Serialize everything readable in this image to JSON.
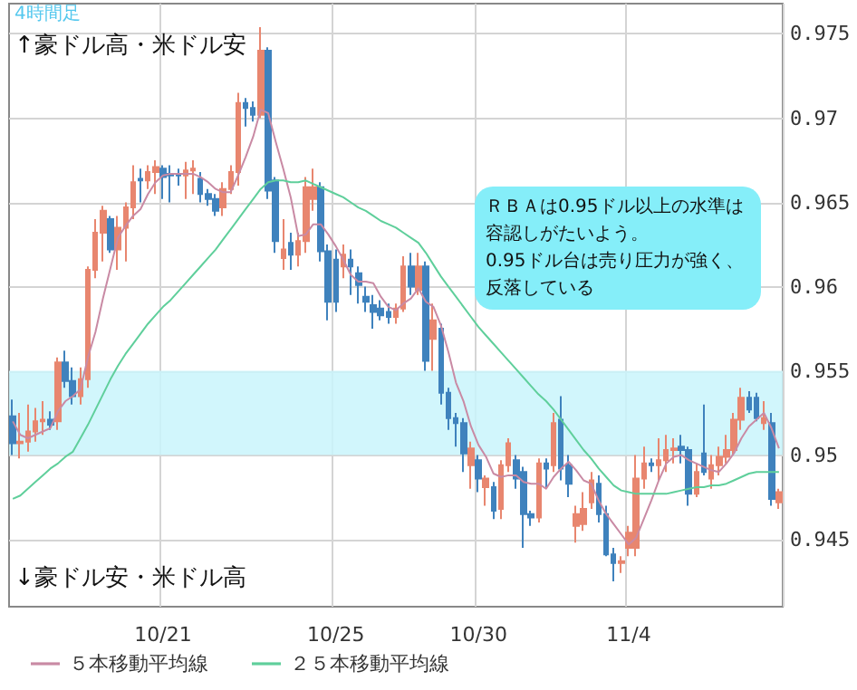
{
  "chart_data": {
    "type": "candlestick",
    "title": "4時間足",
    "annotations": [
      "↑豪ドル高・米ドル安",
      "ＲＢＡは0.95ドル以上の水準は容認しがたいよう。\n0.95ドル台は売り圧力が強く、反落している",
      "↓豪ドル安・米ドル高"
    ],
    "categories": [
      null,
      null,
      null,
      null,
      null,
      null,
      null,
      null,
      null,
      null,
      null,
      null,
      null,
      null,
      null,
      null,
      null,
      null,
      null,
      null,
      "10/21",
      null,
      null,
      null,
      null,
      null,
      null,
      null,
      null,
      null,
      null,
      null,
      null,
      null,
      null,
      null,
      null,
      null,
      null,
      null,
      null,
      null,
      null,
      "10/25",
      null,
      null,
      null,
      null,
      null,
      null,
      null,
      null,
      null,
      null,
      null,
      null,
      null,
      null,
      null,
      null,
      null,
      null,
      "10/30",
      null,
      null,
      null,
      null,
      null,
      null,
      null,
      null,
      null,
      null,
      null,
      null,
      null,
      null,
      null,
      null,
      null,
      null,
      null,
      "11/4",
      null,
      null,
      null,
      null,
      null,
      null,
      null,
      null,
      null,
      null,
      null,
      null,
      null,
      null,
      null,
      null,
      null,
      null,
      null,
      null
    ],
    "ylim": [
      0.941,
      0.9768
    ],
    "yticks": [
      0.945,
      0.95,
      0.955,
      0.96,
      0.965,
      0.97,
      0.975
    ],
    "grid": true,
    "legend": "bottom left",
    "marker": "none",
    "bands": [
      {
        "axis": "y",
        "from": 0.95,
        "to": 0.955,
        "color": "#c9f5fb"
      }
    ],
    "series": [
      {
        "ohlc": [
          [
            0.9523,
            0.9533,
            0.95,
            0.9507
          ],
          [
            0.9507,
            0.9525,
            0.9498,
            0.9508
          ],
          [
            0.9508,
            0.953,
            0.9502,
            0.9514
          ],
          [
            0.9514,
            0.9528,
            0.9508,
            0.952
          ],
          [
            0.952,
            0.9532,
            0.9512,
            0.9521
          ],
          [
            0.9521,
            0.9526,
            0.9515,
            0.9518
          ],
          [
            0.952,
            0.9558,
            0.9515,
            0.9555
          ],
          [
            0.9555,
            0.9562,
            0.954,
            0.9544
          ],
          [
            0.9544,
            0.9552,
            0.953,
            0.9535
          ],
          [
            0.9535,
            0.9552,
            0.953,
            0.9545
          ],
          [
            0.9545,
            0.9612,
            0.954,
            0.961
          ],
          [
            0.961,
            0.964,
            0.9605,
            0.9632
          ],
          [
            0.9632,
            0.9648,
            0.9615,
            0.9645
          ],
          [
            0.964,
            0.9642,
            0.962,
            0.9622
          ],
          [
            0.9622,
            0.9642,
            0.961,
            0.9635
          ],
          [
            0.9635,
            0.965,
            0.9615,
            0.9647
          ],
          [
            0.9647,
            0.9672,
            0.964,
            0.9662
          ],
          [
            0.9664,
            0.967,
            0.965,
            0.9663
          ],
          [
            0.9663,
            0.9672,
            0.9658,
            0.9668
          ],
          [
            0.9668,
            0.9675,
            0.9655,
            0.9671
          ],
          [
            0.967,
            0.9672,
            0.9652,
            0.9665
          ],
          [
            0.9667,
            0.9672,
            0.965,
            0.9666
          ],
          [
            0.9667,
            0.967,
            0.966,
            0.9666
          ],
          [
            0.9666,
            0.9674,
            0.9652,
            0.9669
          ],
          [
            0.9669,
            0.9675,
            0.9655,
            0.967
          ],
          [
            0.9664,
            0.9668,
            0.965,
            0.9655
          ],
          [
            0.9655,
            0.9658,
            0.9648,
            0.9652
          ],
          [
            0.9652,
            0.9655,
            0.9642,
            0.9645
          ],
          [
            0.9647,
            0.9662,
            0.9642,
            0.9658
          ],
          [
            0.9658,
            0.9672,
            0.9655,
            0.9668
          ],
          [
            0.9668,
            0.9715,
            0.966,
            0.9709
          ],
          [
            0.9709,
            0.9712,
            0.9695,
            0.9706
          ],
          [
            0.9706,
            0.971,
            0.9698,
            0.9702
          ],
          [
            0.9702,
            0.9754,
            0.97,
            0.974
          ],
          [
            0.974,
            0.9742,
            0.9652,
            0.9657
          ],
          [
            0.9663,
            0.9665,
            0.962,
            0.9627
          ],
          [
            0.9617,
            0.964,
            0.961,
            0.9622
          ],
          [
            0.9626,
            0.9632,
            0.961,
            0.9619
          ],
          [
            0.9619,
            0.9632,
            0.9612,
            0.9627
          ],
          [
            0.9627,
            0.9665,
            0.962,
            0.9659
          ],
          [
            0.9652,
            0.967,
            0.9645,
            0.9659
          ],
          [
            0.9659,
            0.9662,
            0.9615,
            0.9621
          ],
          [
            0.9621,
            0.9625,
            0.958,
            0.9591
          ],
          [
            0.9616,
            0.9622,
            0.9585,
            0.9591
          ],
          [
            0.9612,
            0.9625,
            0.9605,
            0.9619
          ],
          [
            0.9616,
            0.9622,
            0.9595,
            0.9612
          ],
          [
            0.9608,
            0.9612,
            0.959,
            0.9601
          ],
          [
            0.9594,
            0.96,
            0.9585,
            0.9591
          ],
          [
            0.9589,
            0.9595,
            0.9575,
            0.9585
          ],
          [
            0.9587,
            0.9592,
            0.958,
            0.9583
          ],
          [
            0.9585,
            0.959,
            0.9578,
            0.9582
          ],
          [
            0.9582,
            0.959,
            0.9578,
            0.9587
          ],
          [
            0.9587,
            0.9618,
            0.9585,
            0.9612
          ],
          [
            0.9612,
            0.962,
            0.9595,
            0.96
          ],
          [
            0.9598,
            0.962,
            0.9595,
            0.9612
          ],
          [
            0.9612,
            0.9615,
            0.955,
            0.9556
          ],
          [
            0.9569,
            0.959,
            0.955,
            0.958
          ],
          [
            0.9575,
            0.9578,
            0.953,
            0.9537
          ],
          [
            0.9537,
            0.954,
            0.9515,
            0.9522
          ],
          [
            0.9522,
            0.9525,
            0.9505,
            0.9519
          ],
          [
            0.9519,
            0.9522,
            0.949,
            0.9501
          ],
          [
            0.9494,
            0.9508,
            0.948,
            0.9504
          ],
          [
            0.9497,
            0.95,
            0.9478,
            0.9486
          ],
          [
            0.9481,
            0.9488,
            0.947,
            0.9486
          ],
          [
            0.9481,
            0.9484,
            0.9462,
            0.9467
          ],
          [
            0.9468,
            0.9497,
            0.9462,
            0.9494
          ],
          [
            0.9494,
            0.951,
            0.949,
            0.9507
          ],
          [
            0.9497,
            0.95,
            0.948,
            0.9486
          ],
          [
            0.949,
            0.9493,
            0.9445,
            0.9465
          ],
          [
            0.9465,
            0.9467,
            0.9458,
            0.9463
          ],
          [
            0.9463,
            0.9498,
            0.946,
            0.9495
          ],
          [
            0.9495,
            0.9498,
            0.948,
            0.9492
          ],
          [
            0.9494,
            0.9525,
            0.949,
            0.9519
          ],
          [
            0.9521,
            0.9535,
            0.9485,
            0.9492
          ],
          [
            0.9494,
            0.95,
            0.9475,
            0.9483
          ],
          [
            0.9458,
            0.947,
            0.9448,
            0.9465
          ],
          [
            0.9459,
            0.9478,
            0.9455,
            0.9468
          ],
          [
            0.9472,
            0.949,
            0.9468,
            0.9485
          ],
          [
            0.9483,
            0.9488,
            0.946,
            0.9465
          ],
          [
            0.9465,
            0.947,
            0.944,
            0.9441
          ],
          [
            0.9441,
            0.9445,
            0.9425,
            0.9436
          ],
          [
            0.9436,
            0.944,
            0.943,
            0.9437
          ],
          [
            0.9445,
            0.9458,
            0.944,
            0.9454
          ],
          [
            0.9445,
            0.95,
            0.944,
            0.9486
          ],
          [
            0.9486,
            0.9505,
            0.948,
            0.9495
          ],
          [
            0.9495,
            0.9498,
            0.949,
            0.9494
          ],
          [
            0.9494,
            0.951,
            0.9485,
            0.9497
          ],
          [
            0.9497,
            0.9512,
            0.949,
            0.9503
          ],
          [
            0.9503,
            0.951,
            0.9495,
            0.9504
          ],
          [
            0.9505,
            0.9512,
            0.9495,
            0.9503
          ],
          [
            0.9503,
            0.9505,
            0.947,
            0.9477
          ],
          [
            0.9477,
            0.9495,
            0.9475,
            0.949
          ],
          [
            0.9501,
            0.953,
            0.9488,
            0.949
          ],
          [
            0.9486,
            0.95,
            0.948,
            0.9494
          ],
          [
            0.9494,
            0.9505,
            0.9488,
            0.9499
          ],
          [
            0.9499,
            0.9512,
            0.9495,
            0.9503
          ],
          [
            0.9503,
            0.9525,
            0.95,
            0.9521
          ],
          [
            0.9521,
            0.954,
            0.9515,
            0.9534
          ],
          [
            0.9534,
            0.9538,
            0.9525,
            0.9527
          ],
          [
            0.9534,
            0.9537,
            0.952,
            0.9522
          ],
          [
            0.9519,
            0.9532,
            0.9515,
            0.9522
          ],
          [
            0.9519,
            0.9525,
            0.947,
            0.9474
          ],
          [
            0.9472,
            0.948,
            0.9468,
            0.9478
          ]
        ],
        "colors": [
          "#3f82bd",
          "#e8866f",
          "#e8866f",
          "#e8866f",
          "#e8866f",
          "#3f82bd",
          "#e8866f",
          "#3f82bd",
          "#3f82bd",
          "#e8866f",
          "#e8866f",
          "#e8866f",
          "#e8866f",
          "#3f82bd",
          "#e8866f",
          "#e8866f",
          "#e8866f",
          "#3f82bd",
          "#e8866f",
          "#e8866f",
          "#3f82bd",
          "#3f82bd",
          "#3f82bd",
          "#e8866f",
          "#e8866f",
          "#3f82bd",
          "#3f82bd",
          "#3f82bd",
          "#e8866f",
          "#e8866f",
          "#e8866f",
          "#3f82bd",
          "#3f82bd",
          "#e8866f",
          "#3f82bd",
          "#3f82bd",
          "#e8866f",
          "#3f82bd",
          "#e8866f",
          "#e8866f",
          "#e8866f",
          "#3f82bd",
          "#3f82bd",
          "#3f82bd",
          "#e8866f",
          "#3f82bd",
          "#3f82bd",
          "#3f82bd",
          "#3f82bd",
          "#3f82bd",
          "#3f82bd",
          "#e8866f",
          "#e8866f",
          "#3f82bd",
          "#e8866f",
          "#3f82bd",
          "#e8866f",
          "#3f82bd",
          "#3f82bd",
          "#3f82bd",
          "#3f82bd",
          "#e8866f",
          "#3f82bd",
          "#e8866f",
          "#3f82bd",
          "#e8866f",
          "#e8866f",
          "#3f82bd",
          "#3f82bd",
          "#3f82bd",
          "#e8866f",
          "#3f82bd",
          "#e8866f",
          "#3f82bd",
          "#3f82bd",
          "#e8866f",
          "#e8866f",
          "#e8866f",
          "#3f82bd",
          "#3f82bd",
          "#3f82bd",
          "#e8866f",
          "#e8866f",
          "#e8866f",
          "#e8866f",
          "#3f82bd",
          "#e8866f",
          "#e8866f",
          "#e8866f",
          "#3f82bd",
          "#3f82bd",
          "#e8866f",
          "#3f82bd",
          "#e8866f",
          "#e8866f",
          "#e8866f",
          "#e8866f",
          "#e8866f",
          "#3f82bd",
          "#3f82bd",
          "#e8866f",
          "#3f82bd",
          "#e8866f"
        ]
      },
      {
        "type": "line",
        "name": "５本移動平均線",
        "color": "#c98aa4",
        "values": [
          0.952,
          0.9512,
          0.951,
          0.9512,
          0.9514,
          0.9516,
          0.9526,
          0.9532,
          0.9535,
          0.9539,
          0.9558,
          0.9573,
          0.9593,
          0.9611,
          0.9629,
          0.9636,
          0.9642,
          0.9646,
          0.9655,
          0.9662,
          0.9666,
          0.9667,
          0.9667,
          0.9667,
          0.9667,
          0.9665,
          0.9662,
          0.9658,
          0.9656,
          0.9656,
          0.9666,
          0.9677,
          0.9689,
          0.9705,
          0.9703,
          0.9686,
          0.967,
          0.9653,
          0.963,
          0.9631,
          0.9637,
          0.9637,
          0.9631,
          0.9624,
          0.9616,
          0.9607,
          0.9603,
          0.9603,
          0.9602,
          0.9594,
          0.9588,
          0.9586,
          0.959,
          0.9593,
          0.9599,
          0.9591,
          0.9588,
          0.9577,
          0.9561,
          0.9543,
          0.9532,
          0.9517,
          0.9506,
          0.9499,
          0.9489,
          0.9487,
          0.9488,
          0.9488,
          0.9484,
          0.9483,
          0.9483,
          0.948,
          0.9487,
          0.9492,
          0.9496,
          0.9491,
          0.9485,
          0.9483,
          0.9473,
          0.9465,
          0.9459,
          0.9453,
          0.9447,
          0.9451,
          0.9462,
          0.9473,
          0.9485,
          0.9495,
          0.9499,
          0.95,
          0.9497,
          0.9495,
          0.9493,
          0.9491,
          0.949,
          0.9495,
          0.9501,
          0.951,
          0.9517,
          0.9521,
          0.9525,
          0.9516,
          0.9504
        ]
      },
      {
        "type": "line",
        "name": "２５本移動平均線",
        "color": "#5fcf9b",
        "values": [
          0.9474,
          0.9476,
          0.948,
          0.9484,
          0.9488,
          0.9492,
          0.9495,
          0.9499,
          0.9502,
          0.951,
          0.9518,
          0.9527,
          0.9536,
          0.9545,
          0.9553,
          0.956,
          0.9566,
          0.9572,
          0.9578,
          0.9583,
          0.9588,
          0.9592,
          0.9597,
          0.9602,
          0.9607,
          0.9612,
          0.9617,
          0.9622,
          0.9628,
          0.9634,
          0.964,
          0.9646,
          0.9652,
          0.9658,
          0.9662,
          0.9663,
          0.9663,
          0.9662,
          0.9662,
          0.9663,
          0.9661,
          0.9659,
          0.9657,
          0.9655,
          0.9653,
          0.965,
          0.9647,
          0.9645,
          0.9642,
          0.9639,
          0.9637,
          0.9635,
          0.9632,
          0.9629,
          0.9626,
          0.962,
          0.9613,
          0.9606,
          0.96,
          0.9594,
          0.9588,
          0.9582,
          0.9576,
          0.9571,
          0.9566,
          0.9561,
          0.9556,
          0.9551,
          0.9546,
          0.9541,
          0.9536,
          0.9532,
          0.9527,
          0.9521,
          0.9515,
          0.9509,
          0.9503,
          0.9498,
          0.9492,
          0.9487,
          0.9482,
          0.9479,
          0.9478,
          0.9477,
          0.9477,
          0.9477,
          0.9477,
          0.9477,
          0.9478,
          0.9479,
          0.948,
          0.9481,
          0.9481,
          0.9482,
          0.9482,
          0.9483,
          0.9485,
          0.9487,
          0.9489,
          0.949,
          0.949,
          0.949,
          0.949
        ]
      }
    ]
  }
}
